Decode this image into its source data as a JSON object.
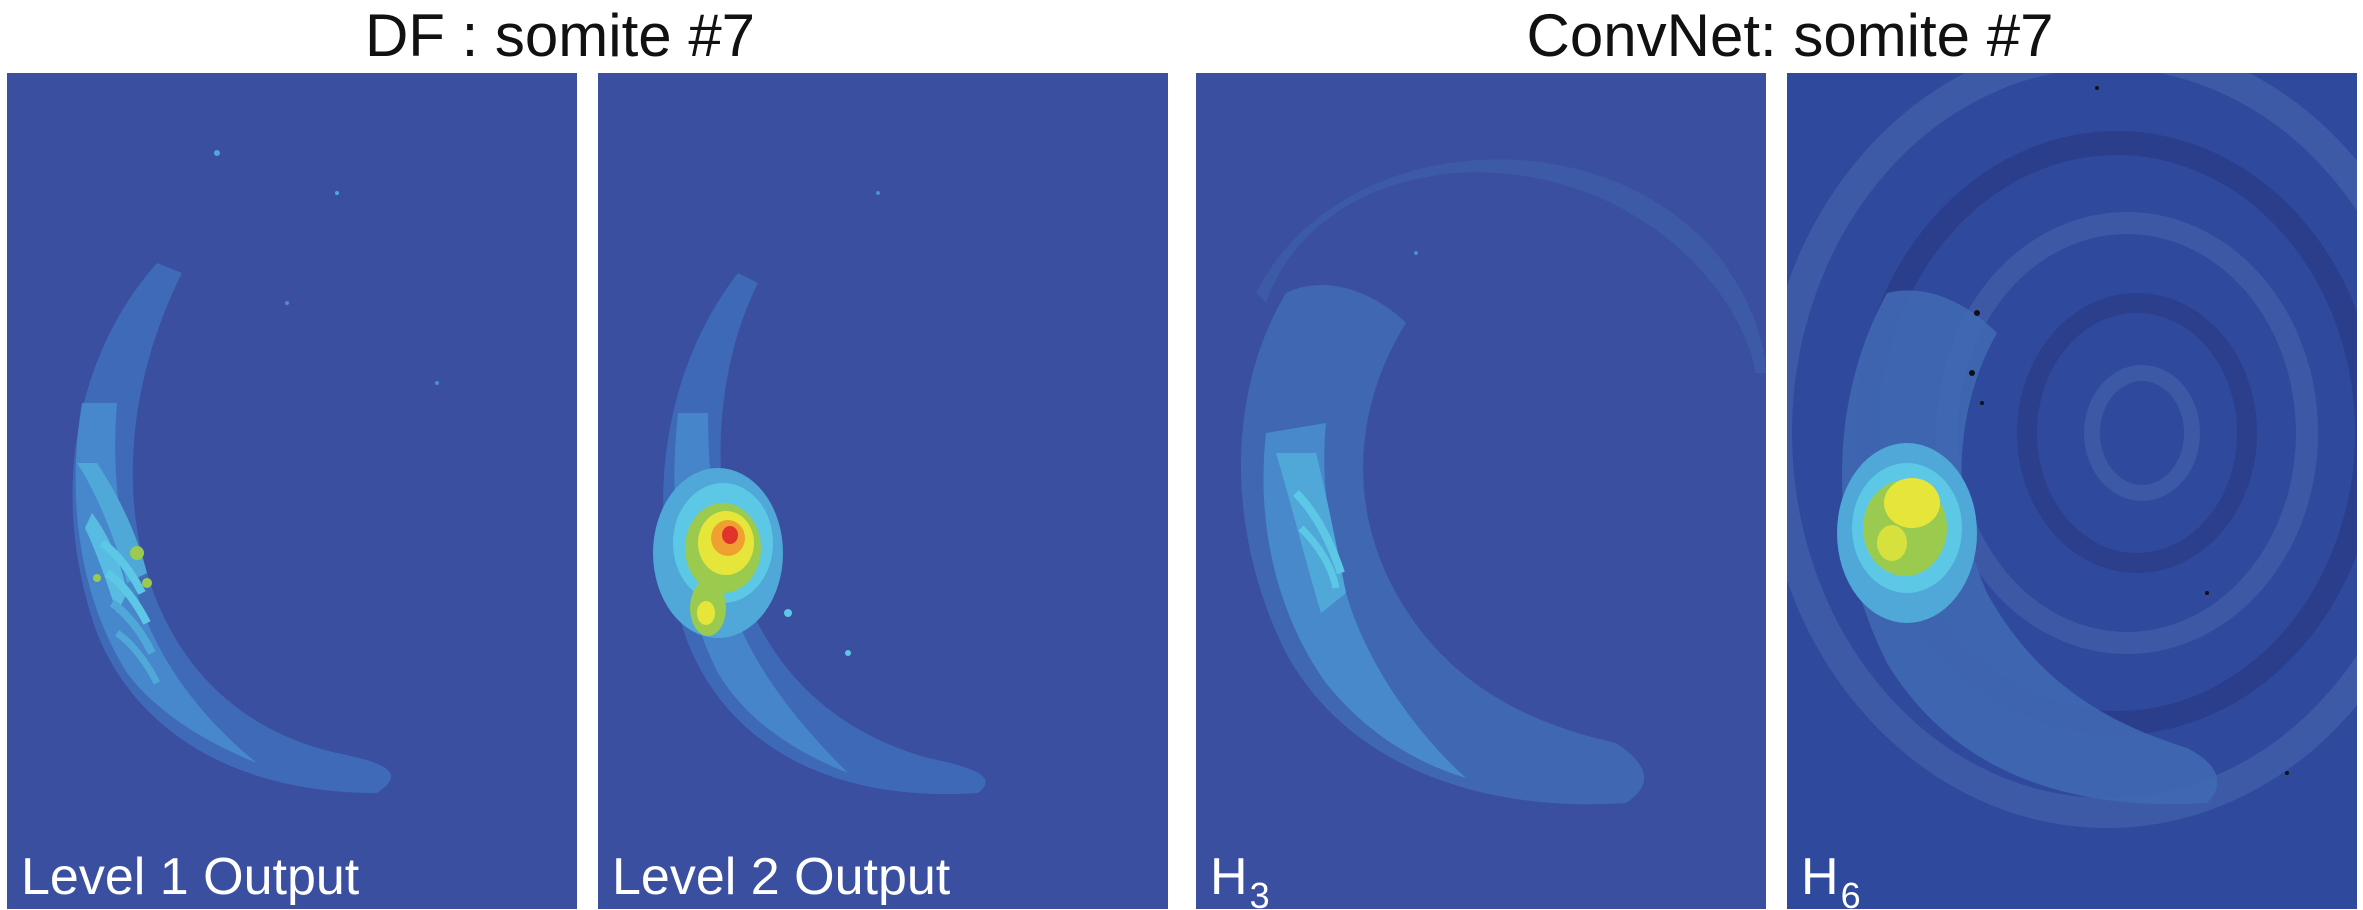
{
  "figure": {
    "titles": [
      {
        "text": "DF : somite #7"
      },
      {
        "text": "ConvNet: somite #7"
      }
    ],
    "panels": [
      {
        "caption": "Level 1 Output",
        "caption_base": "",
        "caption_sub": ""
      },
      {
        "caption": "Level 2 Output",
        "caption_base": "",
        "caption_sub": ""
      },
      {
        "caption": "",
        "caption_base": "H",
        "caption_sub": "3"
      },
      {
        "caption": "",
        "caption_base": "H",
        "caption_sub": "6"
      }
    ],
    "colors": {
      "background_blue": "#3a4f9f",
      "ring_blue": "#3f6cb8",
      "light_blue": "#4fa8d8",
      "cyan": "#5cc8e6",
      "green": "#9acb4f",
      "yellow": "#e6e63a",
      "orange": "#f0a030",
      "red": "#e0332a",
      "dark_navy": "#2a3d8a",
      "black_speck": "#111111"
    }
  }
}
